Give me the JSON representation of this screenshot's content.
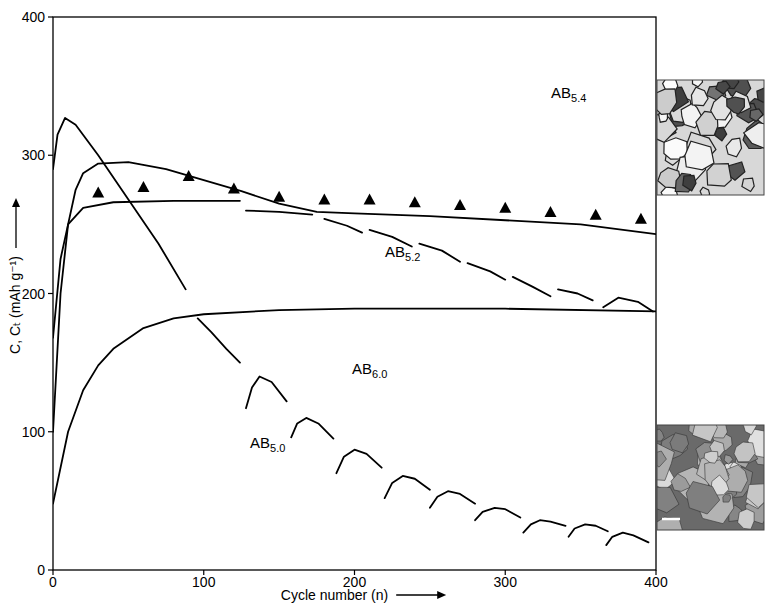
{
  "chart_data": {
    "type": "line",
    "xlabel": "Cycle number (n)",
    "ylabel": "C, Cₜ (mAh g⁻¹)",
    "xlim": [
      0,
      400
    ],
    "ylim": [
      0,
      400
    ],
    "xticks": [
      0,
      100,
      200,
      300,
      400
    ],
    "yticks": [
      0,
      100,
      200,
      300,
      400
    ],
    "grid": false,
    "series": [
      {
        "name": "AB5.0",
        "color": "#000000",
        "type": "line",
        "line_style": "solid",
        "x": [
          0,
          3,
          8,
          15,
          30,
          50,
          70,
          88,
          null,
          96,
          105,
          115,
          124,
          null,
          128,
          132,
          137,
          145,
          155,
          null,
          158,
          162,
          168,
          176,
          186,
          null,
          188,
          193,
          200,
          208,
          218,
          null,
          220,
          225,
          232,
          240,
          250,
          null,
          250,
          255,
          262,
          270,
          280,
          null,
          280,
          285,
          293,
          300,
          310,
          null,
          312,
          317,
          323,
          330,
          340,
          null,
          342,
          346,
          353,
          360,
          368,
          null,
          367,
          371,
          378,
          385,
          395
        ],
        "values": [
          290,
          315,
          327,
          322,
          300,
          268,
          236,
          203,
          null,
          182,
          172,
          160,
          150,
          null,
          117,
          132,
          140,
          136,
          122,
          null,
          96,
          106,
          110,
          106,
          95,
          null,
          70,
          82,
          87,
          84,
          74,
          null,
          52,
          63,
          68,
          66,
          58,
          null,
          45,
          53,
          57,
          55,
          48,
          null,
          36,
          42,
          45,
          44,
          38,
          null,
          27,
          33,
          36,
          35,
          32,
          null,
          24,
          30,
          33,
          32,
          28,
          null,
          18,
          24,
          27,
          25,
          20
        ]
      },
      {
        "name": "AB5.2",
        "color": "#000000",
        "type": "line",
        "line_style": "solid",
        "x": [
          0,
          5,
          10,
          20,
          40,
          80,
          124,
          null,
          128,
          150,
          172,
          null,
          180,
          195,
          205,
          null,
          210,
          225,
          238,
          null,
          243,
          258,
          270,
          null,
          275,
          290,
          300,
          null,
          305,
          318,
          330,
          null,
          335,
          348,
          358,
          null,
          365,
          375,
          388,
          398
        ],
        "values": [
          168,
          225,
          250,
          262,
          266,
          267,
          267,
          null,
          260,
          259,
          257,
          null,
          254,
          249,
          244,
          null,
          246,
          241,
          234,
          null,
          236,
          231,
          223,
          null,
          222,
          216,
          210,
          null,
          212,
          205,
          198,
          null,
          203,
          200,
          195,
          null,
          190,
          197,
          194,
          187
        ]
      },
      {
        "name": "AB5.4",
        "color": "#000000",
        "type": "line",
        "line_style": "solid",
        "x": [
          0,
          5,
          10,
          15,
          20,
          30,
          50,
          75,
          100,
          125,
          150,
          175,
          200,
          250,
          300,
          350,
          400
        ],
        "values": [
          100,
          200,
          250,
          275,
          287,
          294,
          295,
          290,
          282,
          274,
          265,
          259,
          258,
          256,
          253,
          250,
          243
        ]
      },
      {
        "name": "AB6.0",
        "color": "#000000",
        "type": "line",
        "line_style": "solid",
        "x": [
          0,
          10,
          20,
          30,
          40,
          60,
          80,
          100,
          150,
          200,
          300,
          400
        ],
        "values": [
          48,
          100,
          130,
          148,
          160,
          175,
          182,
          185,
          188,
          189,
          189,
          187
        ]
      },
      {
        "color": "#000000",
        "type": "scatter",
        "marker": "triangle",
        "x": [
          30,
          60,
          90,
          120,
          150,
          180,
          210,
          240,
          270,
          300,
          330,
          360,
          390
        ],
        "values": [
          273,
          277,
          285,
          276,
          270,
          268,
          268,
          266,
          264,
          262,
          259,
          257,
          254
        ]
      }
    ]
  }
}
